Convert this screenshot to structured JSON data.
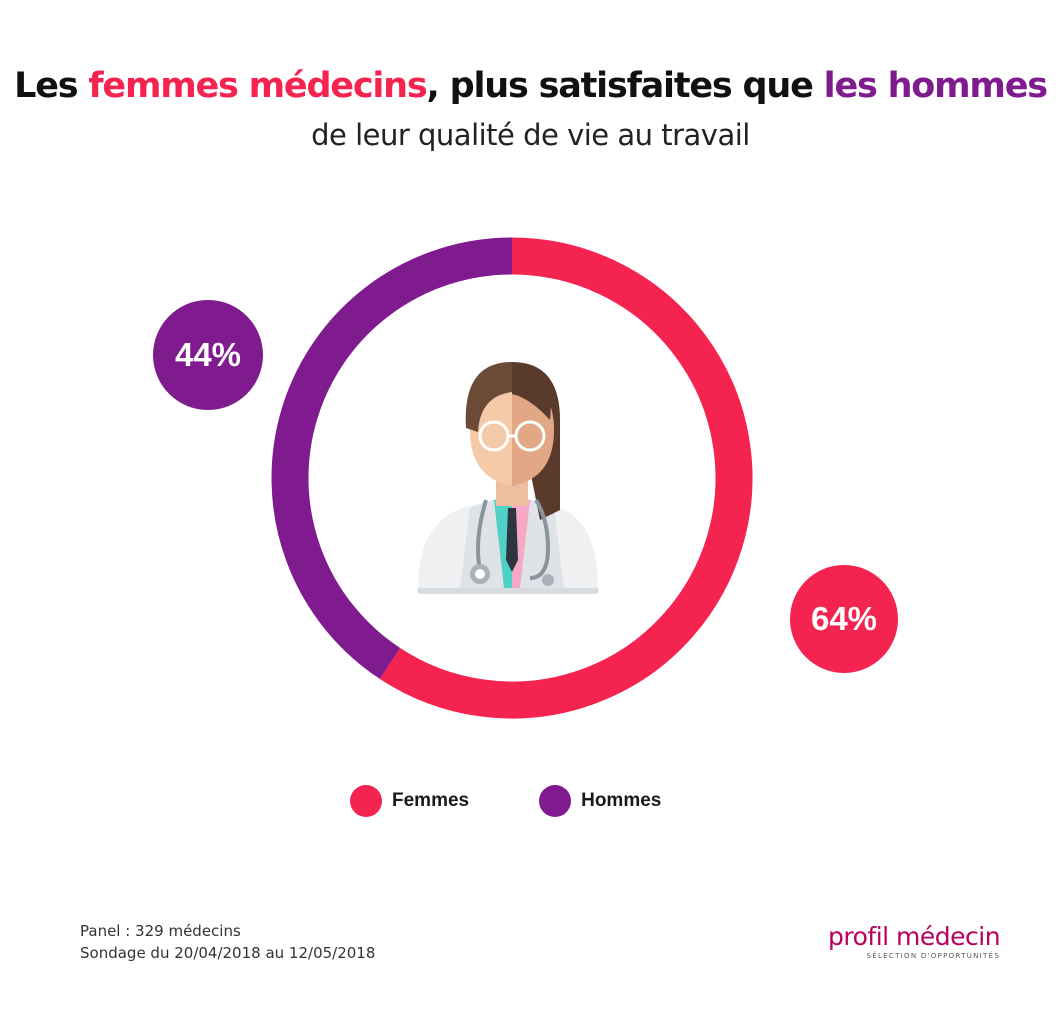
{
  "title": {
    "part1": "Les ",
    "highlight1": "femmes médecins",
    "part2": ", plus satisfaites que ",
    "highlight2": "les hommes",
    "subtitle": "de leur qualité de vie au travail"
  },
  "colors": {
    "femmes": "#f4234f",
    "hommes": "#7f1a8f"
  },
  "chart_data": {
    "type": "pie",
    "series": [
      {
        "name": "Femmes",
        "value": 64,
        "label": "64%"
      },
      {
        "name": "Hommes",
        "value": 44,
        "label": "44%"
      }
    ],
    "legend": [
      "Femmes",
      "Hommes"
    ],
    "legend_position": "bottom",
    "center_illustration": "doctor-woman-man-icon"
  },
  "footnote": {
    "line1": "Panel : 329 médecins",
    "line2": "Sondage du 20/04/2018 au 12/05/2018"
  },
  "logo": {
    "main": "profil médecin",
    "sub": "SÉLECTION D'OPPORTUNITÉS"
  }
}
